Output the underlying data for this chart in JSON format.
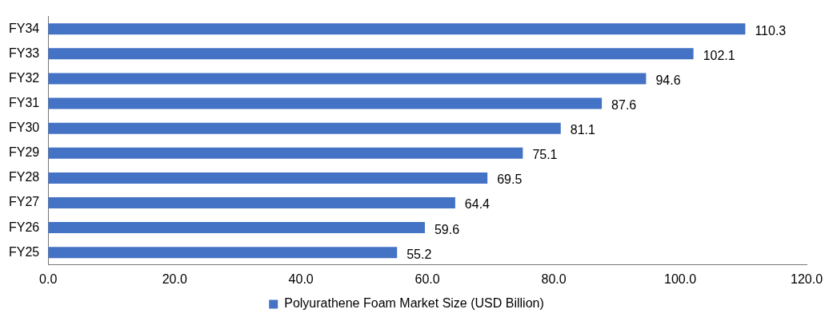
{
  "chart_data": {
    "type": "bar",
    "orientation": "horizontal",
    "categories": [
      "FY34",
      "FY33",
      "FY32",
      "FY31",
      "FY30",
      "FY29",
      "FY28",
      "FY27",
      "FY26",
      "FY25"
    ],
    "series": [
      {
        "name": "Polyurathene Foam Market Size (USD Billion)",
        "color": "#4472c4",
        "values": [
          110.3,
          102.1,
          94.6,
          87.6,
          81.1,
          75.1,
          69.5,
          64.4,
          59.6,
          55.2
        ]
      }
    ],
    "xlim": [
      0,
      120
    ],
    "xticks": [
      {
        "value": 0,
        "label": "0.0"
      },
      {
        "value": 20,
        "label": "20.0"
      },
      {
        "value": 40,
        "label": "40.0"
      },
      {
        "value": 60,
        "label": "60.0"
      },
      {
        "value": 80,
        "label": "80.0"
      },
      {
        "value": 100,
        "label": "100.0"
      },
      {
        "value": 120,
        "label": "120.0"
      }
    ],
    "data_labels": true,
    "legend": "bottom"
  }
}
